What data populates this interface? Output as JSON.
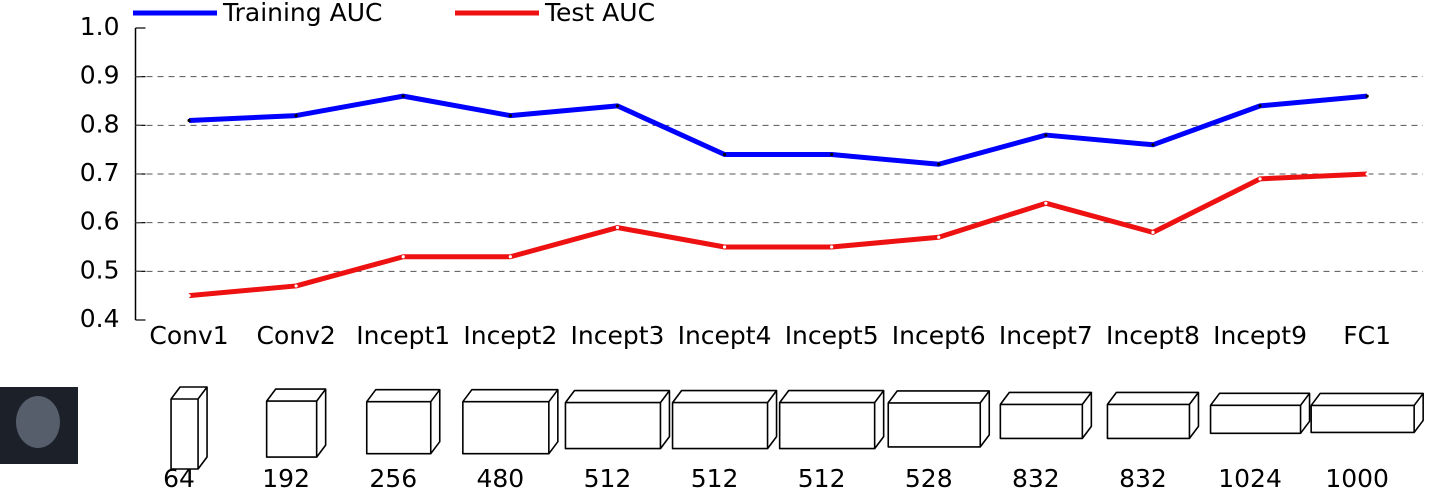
{
  "chart_data": {
    "type": "line",
    "categories": [
      "Conv1",
      "Conv2",
      "Incept1",
      "Incept2",
      "Incept3",
      "Incept4",
      "Incept5",
      "Incept6",
      "Incept7",
      "Incept8",
      "Incept9",
      "FC1"
    ],
    "series": [
      {
        "name": "Training AUC",
        "color": "#0000ff",
        "values": [
          0.81,
          0.82,
          0.86,
          0.82,
          0.84,
          0.74,
          0.74,
          0.72,
          0.78,
          0.76,
          0.84,
          0.86
        ]
      },
      {
        "name": "Test AUC",
        "color": "#ee1111",
        "values": [
          0.45,
          0.47,
          0.53,
          0.53,
          0.59,
          0.55,
          0.55,
          0.57,
          0.64,
          0.58,
          0.69,
          0.7
        ]
      }
    ],
    "ylim": [
      0.4,
      1.0
    ],
    "yticks": [
      0.4,
      0.5,
      0.6,
      0.7,
      0.8,
      0.9,
      {
        "value": 1.0,
        "label": "1.0"
      }
    ],
    "grid": true,
    "legend": "top"
  },
  "layers": {
    "channels": [
      64,
      192,
      256,
      480,
      512,
      512,
      512,
      528,
      832,
      832,
      1024,
      1000
    ]
  }
}
